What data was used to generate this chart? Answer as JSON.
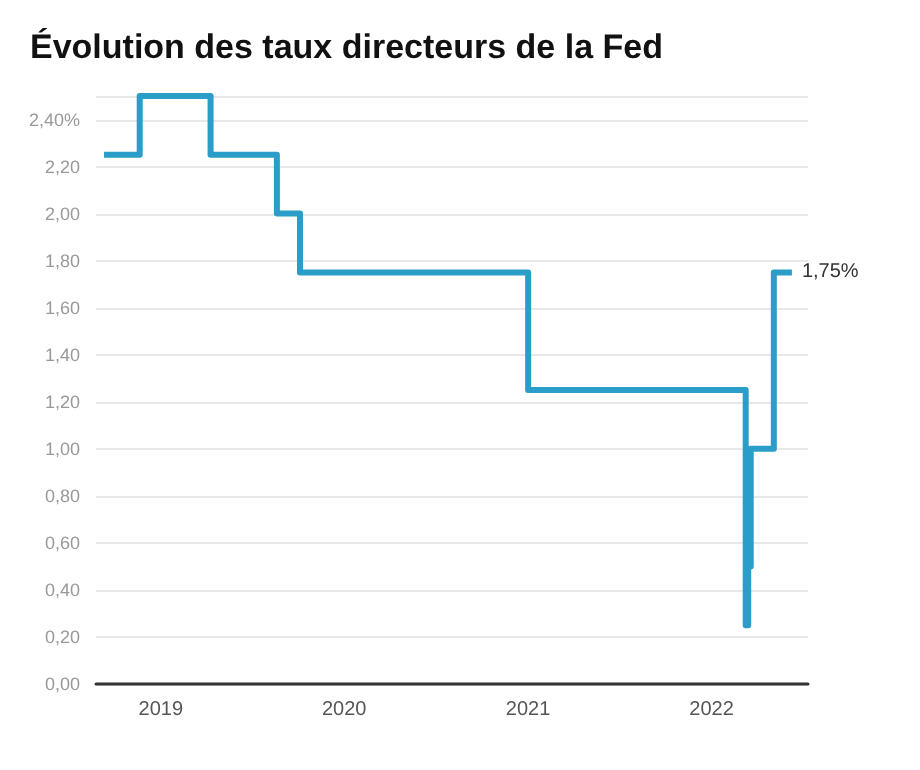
{
  "chart_data": {
    "type": "step",
    "title": "Évolution des taux directeurs de la Fed",
    "x": [
      "2018-09-10",
      "2018-11-20",
      "2019-04-10",
      "2019-08-20",
      "2019-10-05",
      "2021-01-01",
      "2022-03-10",
      "2022-03-15",
      "2022-03-20",
      "2022-05-05",
      "2022-06-10"
    ],
    "series": [
      {
        "color": "#2a9ec8",
        "values": [
          2.25,
          2.5,
          2.25,
          2.0,
          1.75,
          1.25,
          0.25,
          0.5,
          1.0,
          1.75,
          1.75
        ],
        "value_labels": [
          null,
          null,
          null,
          null,
          null,
          null,
          null,
          null,
          null,
          null,
          "1,75%"
        ]
      }
    ],
    "xlim": [
      "2018-08-25",
      "2022-07-12"
    ],
    "xticks": [
      "2019",
      "2020",
      "2021",
      "2022"
    ],
    "ylim": [
      0,
      2.5
    ],
    "yticks": [
      {
        "value": 0,
        "label": "0,00"
      },
      {
        "value": 0.2,
        "label": "0,20"
      },
      {
        "value": 0.4,
        "label": "0,40"
      },
      {
        "value": 0.6,
        "label": "0,60"
      },
      {
        "value": 0.8,
        "label": "0,80"
      },
      {
        "value": 1.0,
        "label": "1,00"
      },
      {
        "value": 1.2,
        "label": "1,20"
      },
      {
        "value": 1.4,
        "label": "1,40"
      },
      {
        "value": 1.6,
        "label": "1,60"
      },
      {
        "value": 1.8,
        "label": "1,80"
      },
      {
        "value": 2.0,
        "label": "2,00"
      },
      {
        "value": 2.2,
        "label": "2,20"
      },
      {
        "value": 2.4,
        "label": "2,40%"
      },
      {
        "value": 2.5,
        "label": null
      }
    ],
    "grid": "y",
    "marker": "none",
    "line_style": "solid"
  }
}
